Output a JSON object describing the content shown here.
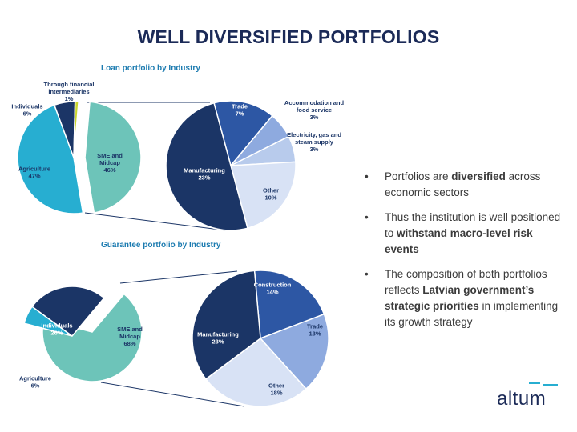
{
  "title": "WELL DIVERSIFIED PORTFOLIOS",
  "colors": {
    "dark_navy": "#1b3566",
    "mid_blue": "#2d57a4",
    "light_blue": "#8eaadf",
    "pale_blue": "#b8cbec",
    "very_pale_blue": "#d8e2f5",
    "teal": "#6dc4b9",
    "cyan": "#27aed1",
    "yellow_green": "#c9d62c",
    "panel_title": "#1c7bb0"
  },
  "bullets": [
    {
      "parts": [
        {
          "t": "Portfolios are ",
          "b": false
        },
        {
          "t": "diversified",
          "b": true
        },
        {
          "t": " across economic sectors",
          "b": false
        }
      ]
    },
    {
      "parts": [
        {
          "t": "Thus the institution is well positioned to ",
          "b": false
        },
        {
          "t": "withstand macro-level risk events",
          "b": true
        }
      ]
    },
    {
      "parts": [
        {
          "t": "The composition of both portfolios reflects ",
          "b": false
        },
        {
          "t": "Latvian government’s strategic priorities",
          "b": true
        },
        {
          "t": " in implementing its growth strategy",
          "b": false
        }
      ]
    }
  ],
  "logo": {
    "text": "altum"
  },
  "chart_data": [
    {
      "type": "pie",
      "title": "Loan portfolio by Industry",
      "slices": [
        {
          "label": "SME and Midcap",
          "value": 46,
          "color": "#6dc4b9"
        },
        {
          "label": "Agriculture",
          "value": 47,
          "color": "#27aed1"
        },
        {
          "label": "Individuals",
          "value": 6,
          "color": "#1b3566"
        },
        {
          "label": "Through financial intermediaries",
          "value": 1,
          "color": "#c9d62c"
        }
      ]
    },
    {
      "type": "pie",
      "title": "",
      "slices": [
        {
          "label": "Trade",
          "value": 7,
          "color": "#2d57a4"
        },
        {
          "label": "Accommodation and food service",
          "value": 3,
          "color": "#8eaadf"
        },
        {
          "label": "Electricity, gas and steam supply",
          "value": 3,
          "color": "#b8cbec"
        },
        {
          "label": "Other",
          "value": 10,
          "color": "#d8e2f5"
        },
        {
          "label": "Manufacturing",
          "value": 23,
          "color": "#1b3566"
        }
      ]
    },
    {
      "type": "pie",
      "title": "Guarantee portfolio by Industry",
      "slices": [
        {
          "label": "SME and Midcap",
          "value": 68,
          "color": "#6dc4b9"
        },
        {
          "label": "Agriculture",
          "value": 6,
          "color": "#27aed1"
        },
        {
          "label": "Individuals",
          "value": 26,
          "color": "#1b3566"
        }
      ]
    },
    {
      "type": "pie",
      "title": "",
      "slices": [
        {
          "label": "Construction",
          "value": 14,
          "color": "#2d57a4"
        },
        {
          "label": "Trade",
          "value": 13,
          "color": "#8eaadf"
        },
        {
          "label": "Other",
          "value": 18,
          "color": "#d8e2f5"
        },
        {
          "label": "Manufacturing",
          "value": 23,
          "color": "#1b3566"
        }
      ]
    }
  ]
}
